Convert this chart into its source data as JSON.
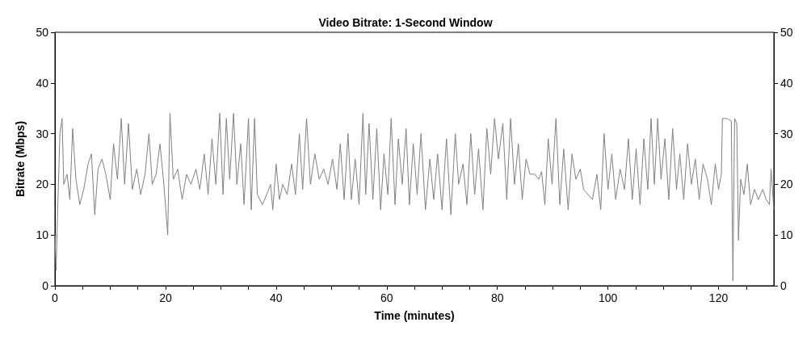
{
  "chart_data": {
    "type": "line",
    "title": "Video Bitrate: 1-Second Window",
    "xlabel": "Time (minutes)",
    "ylabel": "Bitrate (Mbps)",
    "xlim": [
      0,
      130
    ],
    "xticks": [
      0,
      {
        "value": 5,
        "label": null
      },
      {
        "value": 10,
        "label": null
      },
      {
        "value": 15,
        "label": null
      },
      20,
      {
        "value": 25,
        "label": null
      },
      {
        "value": 30,
        "label": null
      },
      {
        "value": 35,
        "label": null
      },
      40,
      {
        "value": 45,
        "label": null
      },
      {
        "value": 50,
        "label": null
      },
      {
        "value": 55,
        "label": null
      },
      60,
      {
        "value": 65,
        "label": null
      },
      {
        "value": 70,
        "label": null
      },
      {
        "value": 75,
        "label": null
      },
      80,
      {
        "value": 85,
        "label": null
      },
      {
        "value": 90,
        "label": null
      },
      {
        "value": 95,
        "label": null
      },
      100,
      {
        "value": 105,
        "label": null
      },
      {
        "value": 110,
        "label": null
      },
      {
        "value": 115,
        "label": null
      },
      120,
      {
        "value": 125,
        "label": null
      }
    ],
    "ylim": [
      0,
      50
    ],
    "yticks": [
      0,
      10,
      20,
      30,
      40,
      50
    ],
    "y2lim": [
      0,
      50
    ],
    "y2ticks": [
      0,
      10,
      20,
      30,
      40,
      50
    ],
    "series": [
      {
        "color": "#808080",
        "x": [
          0,
          0.2,
          0.5,
          0.9,
          1.3,
          1.6,
          2.2,
          2.7,
          3.2,
          3.8,
          4.5,
          5.2,
          6,
          6.6,
          7.2,
          7.8,
          8.5,
          9.2,
          10,
          10.6,
          11.3,
          12,
          12.6,
          13.3,
          14,
          14.8,
          15.5,
          16.3,
          17,
          17.6,
          18.3,
          19,
          19.7,
          20.4,
          20.8,
          21.4,
          22.2,
          23,
          23.8,
          24.6,
          25.5,
          26.2,
          27,
          27.7,
          28.4,
          29.1,
          29.8,
          30.4,
          31,
          31.6,
          32.3,
          32.9,
          33.6,
          34.2,
          35,
          35.5,
          36.1,
          36.6,
          37.5,
          38.3,
          39,
          39.4,
          40,
          40.6,
          41.2,
          42,
          42.8,
          43.5,
          44.2,
          44.8,
          45.5,
          46.2,
          47,
          47.8,
          48.6,
          49.4,
          50.2,
          51,
          51.6,
          52.3,
          53,
          53.6,
          54.3,
          55,
          55.7,
          56.2,
          56.8,
          57.5,
          58.2,
          58.9,
          59.5,
          60.2,
          60.8,
          61.5,
          62.1,
          62.8,
          63.5,
          64.1,
          64.8,
          65.5,
          66.2,
          67,
          67.8,
          68.5,
          69.2,
          70,
          70.8,
          71.6,
          72.4,
          73,
          73.8,
          74.5,
          75.2,
          75.9,
          76.6,
          77.4,
          78.1,
          78.8,
          79.5,
          80.2,
          81,
          81.7,
          82.4,
          83.1,
          83.8,
          84.5,
          85.2,
          85.9,
          86.8,
          87.5,
          88,
          88.6,
          89.2,
          89.9,
          90.6,
          91.3,
          92,
          92.8,
          93.5,
          94.2,
          95,
          95.6,
          96.4,
          97.2,
          98,
          98.7,
          99.3,
          100,
          100.7,
          101.4,
          102.2,
          103,
          103.7,
          104.4,
          105.1,
          105.8,
          106.5,
          107.2,
          107.8,
          108.4,
          109,
          109.6,
          110.3,
          111,
          111.7,
          112.4,
          113,
          113.7,
          114.4,
          115.1,
          115.8,
          116.5,
          117.2,
          118,
          118.7,
          119.4,
          120,
          120.5,
          120.7,
          121.5,
          122.3,
          122.6,
          122.9,
          123.3,
          123.6,
          124,
          124.6,
          125.2,
          125.8,
          126.5,
          127.2,
          128,
          128.6,
          129.2,
          129.5,
          130
        ],
        "values": [
          10,
          3,
          15,
          30,
          33,
          20,
          22,
          17,
          31,
          21,
          16,
          19,
          24,
          26,
          14,
          23,
          25,
          22,
          17,
          28,
          21,
          33,
          20,
          32,
          19,
          23,
          18,
          22,
          30,
          20,
          22,
          28,
          20,
          10,
          34,
          21,
          23,
          17,
          22,
          20,
          23,
          19,
          26,
          18,
          29,
          20,
          34,
          18,
          33,
          21,
          34,
          20,
          28,
          16,
          33,
          15,
          33,
          18,
          16,
          18,
          20,
          15,
          24,
          17,
          20,
          18,
          24,
          18,
          30,
          19,
          33,
          20,
          26,
          21,
          23,
          20,
          25,
          19,
          28,
          17,
          30,
          17,
          25,
          16,
          34,
          18,
          32,
          17,
          31,
          15,
          26,
          18,
          33,
          16,
          29,
          20,
          31,
          16,
          28,
          18,
          30,
          15,
          25,
          17,
          26,
          15,
          29,
          14,
          30,
          20,
          24,
          16,
          30,
          18,
          27,
          15,
          31,
          22,
          33,
          25,
          32,
          17,
          33,
          20,
          28,
          17,
          25,
          22,
          22,
          21,
          22.5,
          16,
          29,
          20,
          33,
          16,
          27,
          15,
          26,
          21,
          23,
          19,
          18,
          17,
          22,
          15,
          30,
          19,
          26,
          17,
          23,
          19,
          29,
          17,
          27,
          16,
          29,
          19,
          33,
          20,
          33,
          21,
          29,
          17,
          31,
          19,
          26,
          17,
          28,
          20,
          25,
          17,
          24,
          21,
          16,
          24,
          19,
          22,
          33,
          33,
          32.5,
          1,
          33,
          32,
          9,
          21,
          18,
          24,
          16,
          19,
          17,
          19,
          17,
          16,
          23,
          15
        ]
      }
    ]
  }
}
